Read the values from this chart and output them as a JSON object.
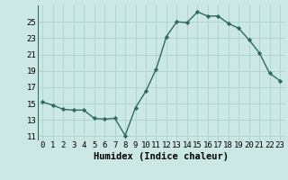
{
  "x": [
    0,
    1,
    2,
    3,
    4,
    5,
    6,
    7,
    8,
    9,
    10,
    11,
    12,
    13,
    14,
    15,
    16,
    17,
    18,
    19,
    20,
    21,
    22,
    23
  ],
  "y": [
    15.2,
    14.8,
    14.3,
    14.2,
    14.2,
    13.2,
    13.1,
    13.2,
    11.1,
    14.5,
    16.5,
    19.2,
    23.2,
    25.0,
    24.9,
    26.2,
    25.7,
    25.7,
    24.8,
    24.2,
    22.8,
    21.2,
    18.7,
    17.8
  ],
  "line_color": "#2e6b5e",
  "marker": "D",
  "marker_size": 2.2,
  "bg_color": "#cce8e5",
  "grid_color": "#b0d4d0",
  "xlabel": "Humidex (Indice chaleur)",
  "ylim": [
    10.5,
    27.0
  ],
  "yticks": [
    11,
    13,
    15,
    17,
    19,
    21,
    23,
    25
  ],
  "xticks": [
    0,
    1,
    2,
    3,
    4,
    5,
    6,
    7,
    8,
    9,
    10,
    11,
    12,
    13,
    14,
    15,
    16,
    17,
    18,
    19,
    20,
    21,
    22,
    23
  ],
  "xlabel_fontsize": 7.5,
  "tick_fontsize": 6.5,
  "lw": 1.0
}
